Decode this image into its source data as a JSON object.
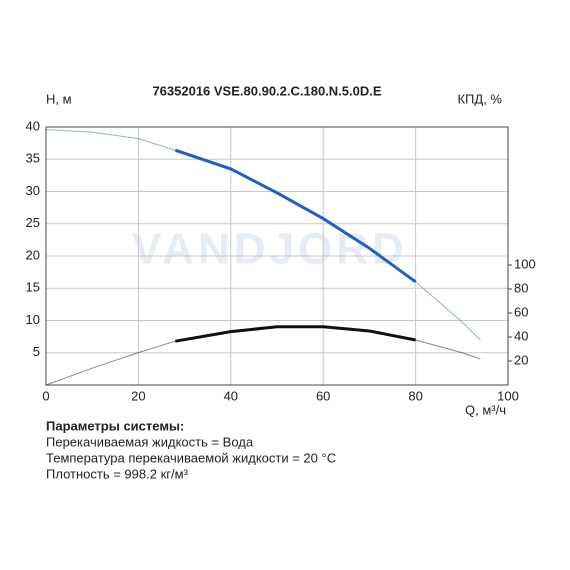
{
  "chart_data": {
    "type": "line",
    "title": "76352016 VSE.80.90.2.C.180.N.5.0D.E",
    "y_label": "Н, м",
    "y2_label": "КПД, %",
    "x_label": "Q, м³/ч",
    "watermark": "VANDJORD",
    "x": [
      0,
      10,
      20,
      28,
      40,
      50,
      60,
      70,
      80,
      90,
      94
    ],
    "series": [
      {
        "color": "#1f5fc4",
        "values": [
          39.6,
          39.2,
          38.2,
          36.4,
          33.5,
          29.8,
          25.8,
          21.2,
          16.0,
          9.8,
          7.0
        ]
      },
      {
        "color": "#111111",
        "axis": "y2",
        "values": [
          0,
          14,
          27,
          36.5,
          44.5,
          48.5,
          48.5,
          45,
          37.5,
          27,
          21.7
        ]
      }
    ],
    "operating_range": [
      28,
      80
    ],
    "xlim": [
      0,
      100
    ],
    "xticks": [
      0,
      20,
      40,
      60,
      80,
      100
    ],
    "ylim": [
      0,
      40
    ],
    "yticks": [
      5,
      10,
      15,
      20,
      25,
      30,
      35,
      40
    ],
    "y2lim": [
      0,
      215
    ],
    "y2ticks": [
      20,
      40,
      60,
      80,
      100
    ],
    "grid": true
  },
  "notes": {
    "heading": "Параметры системы:",
    "lines": [
      "Перекачиваемая жидкость = Вода",
      "Температура перекачиваемой жидкости = 20 °C",
      "Плотность = 998.2 кг/м³"
    ]
  }
}
